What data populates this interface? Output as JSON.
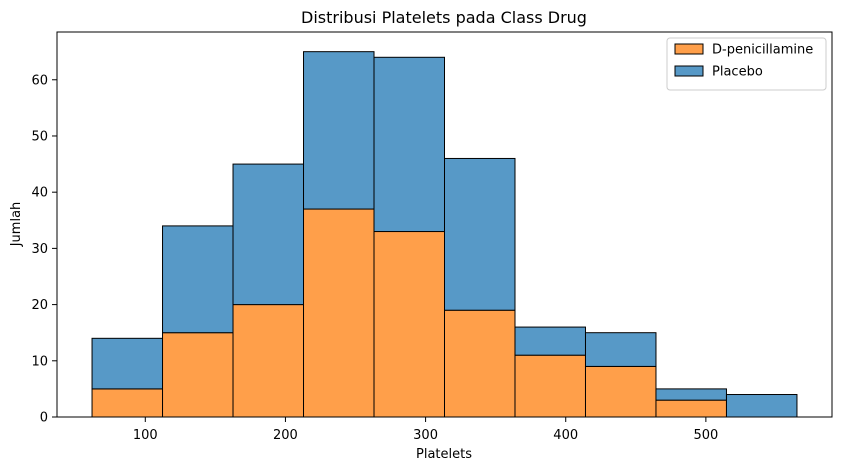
{
  "chart_data": {
    "type": "bar",
    "title": "Distribusi Platelets pada Class Drug",
    "xlabel": "Platelets",
    "ylabel": "Jumlah",
    "stacked": true,
    "bin_edges": [
      62,
      112.3,
      162.6,
      212.9,
      263.2,
      313.5,
      363.8,
      414.1,
      464.4,
      514.7,
      565
    ],
    "series": [
      {
        "name": "D-penicillamine",
        "color": "#ff9f4a",
        "values": [
          5,
          15,
          20,
          37,
          33,
          19,
          11,
          9,
          3,
          0
        ]
      },
      {
        "name": "Placebo",
        "color": "#5799c7",
        "values": [
          9,
          19,
          25,
          28,
          31,
          27,
          5,
          6,
          2,
          4
        ]
      }
    ],
    "totals": [
      14,
      34,
      45,
      65,
      64,
      46,
      16,
      15,
      5,
      4
    ],
    "xlim": [
      37,
      590
    ],
    "ylim": [
      0,
      68.5
    ],
    "xticks": [
      100,
      200,
      300,
      400,
      500
    ],
    "yticks": [
      0,
      10,
      20,
      30,
      40,
      50,
      60
    ],
    "grid": false,
    "legend_position": "top-right"
  }
}
